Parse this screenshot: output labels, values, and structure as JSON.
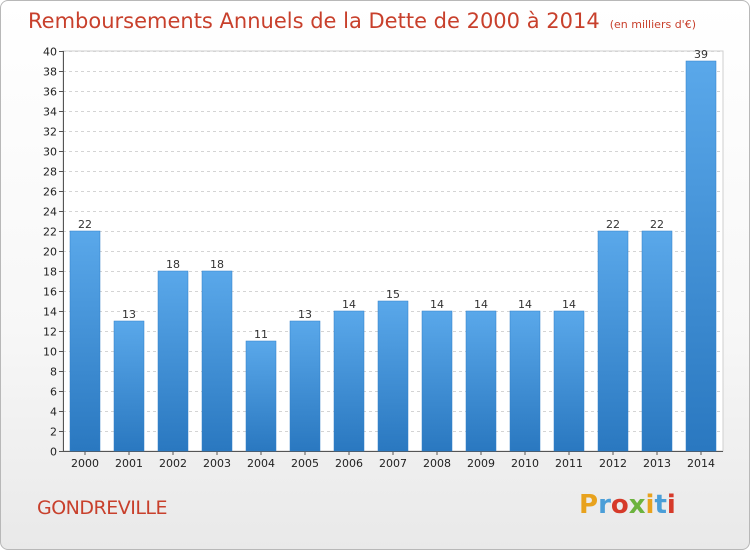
{
  "chart_data": {
    "type": "bar",
    "title": "Remboursements Annuels de la Dette de 2000 à 2014",
    "subtitle": "(en milliers d'€)",
    "categories": [
      "2000",
      "2001",
      "2002",
      "2003",
      "2004",
      "2005",
      "2006",
      "2007",
      "2008",
      "2009",
      "2010",
      "2011",
      "2012",
      "2013",
      "2014"
    ],
    "values": [
      22,
      13,
      18,
      18,
      11,
      13,
      14,
      15,
      14,
      14,
      14,
      14,
      22,
      22,
      39
    ],
    "ylim": [
      0,
      40
    ],
    "yticks": [
      0,
      2,
      4,
      6,
      8,
      10,
      12,
      14,
      16,
      18,
      20,
      22,
      24,
      26,
      28,
      30,
      32,
      34,
      36,
      38,
      40
    ],
    "grid": true,
    "bar_color": "#3d8fd6"
  },
  "footer": {
    "place": "GONDREVILLE",
    "logo_letters": [
      "P",
      "r",
      "o",
      "x",
      "i",
      "t",
      "i"
    ],
    "logo_colors": [
      "#e8a21d",
      "#4a9ed8",
      "#d63a2a",
      "#6cb33e",
      "#e8a21d",
      "#4a9ed8",
      "#d63a2a"
    ]
  }
}
